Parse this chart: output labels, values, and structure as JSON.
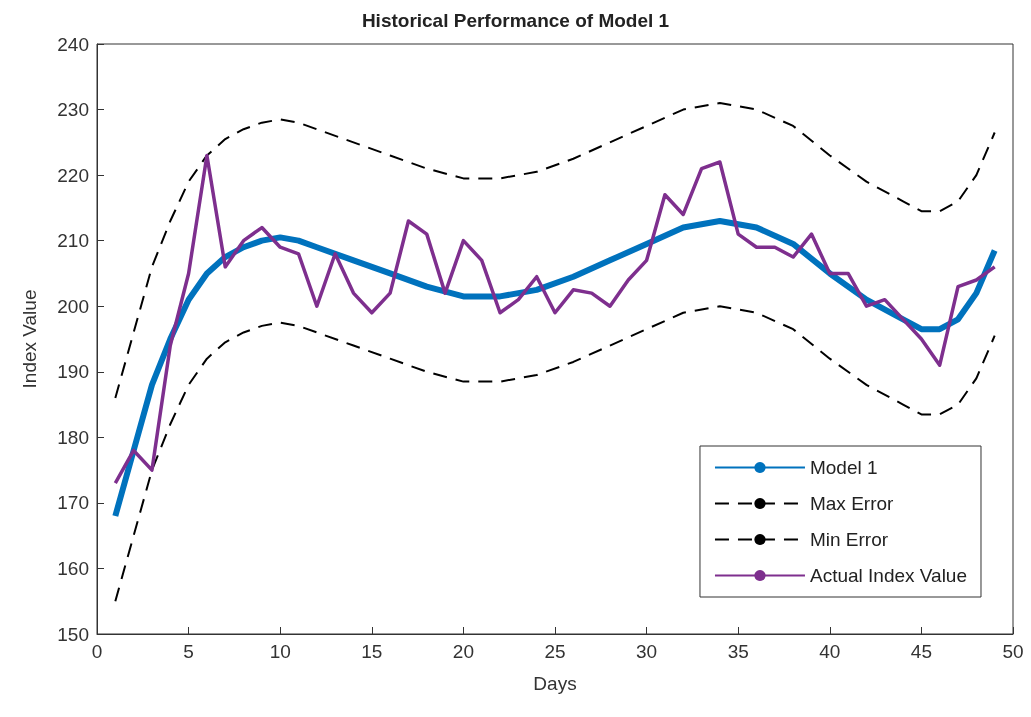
{
  "chart_data": {
    "type": "line",
    "title": "Historical Performance of Model 1",
    "xlabel": "Days",
    "ylabel": "Index Value",
    "xlim": [
      0,
      50
    ],
    "xticks": [
      0,
      5,
      10,
      15,
      20,
      25,
      30,
      35,
      40,
      45,
      50
    ],
    "ylim": [
      150,
      240
    ],
    "yticks": [
      150,
      160,
      170,
      180,
      190,
      200,
      210,
      220,
      230,
      240
    ],
    "grid": false,
    "legend": "bottom right",
    "marker": "none",
    "series": [
      {
        "name": "Model 1",
        "color": "#0072bd",
        "line_style": "solid",
        "x": [
          1,
          2,
          3,
          4,
          5,
          6,
          7,
          8,
          9,
          10,
          11,
          12,
          14,
          16,
          18,
          20,
          22,
          24,
          26,
          28,
          30,
          32,
          34,
          36,
          38,
          40,
          42,
          44,
          45,
          46,
          47,
          48,
          49
        ],
        "values": [
          168,
          178,
          188,
          195,
          201,
          205,
          207.5,
          209,
          210,
          210.5,
          210,
          209,
          207,
          205,
          203,
          201.5,
          201.5,
          202.5,
          204.5,
          207,
          209.5,
          212,
          213,
          212,
          209.5,
          205,
          201,
          198,
          196.5,
          196.5,
          198,
          202,
          208.5
        ]
      },
      {
        "name": "Max Error",
        "color": "#000000",
        "line_style": "dashed",
        "x": [
          1,
          2,
          3,
          4,
          5,
          6,
          7,
          8,
          9,
          10,
          11,
          12,
          14,
          16,
          18,
          20,
          22,
          24,
          26,
          28,
          30,
          32,
          34,
          36,
          38,
          40,
          42,
          44,
          45,
          46,
          47,
          48,
          49
        ],
        "values": [
          186,
          196,
          206,
          213,
          219,
          223,
          225.5,
          227,
          228,
          228.5,
          228,
          227,
          225,
          223,
          221,
          219.5,
          219.5,
          220.5,
          222.5,
          225,
          227.5,
          230,
          231,
          230,
          227.5,
          223,
          219,
          216,
          214.5,
          214.5,
          216,
          220,
          226.5
        ]
      },
      {
        "name": "Min Error",
        "color": "#000000",
        "line_style": "dashed",
        "x": [
          1,
          2,
          3,
          4,
          5,
          6,
          7,
          8,
          9,
          10,
          11,
          12,
          14,
          16,
          18,
          20,
          22,
          24,
          26,
          28,
          30,
          32,
          34,
          36,
          38,
          40,
          42,
          44,
          45,
          46,
          47,
          48,
          49
        ],
        "values": [
          155,
          165,
          175,
          182,
          188,
          192,
          194.5,
          196,
          197,
          197.5,
          197,
          196,
          194,
          192,
          190,
          188.5,
          188.5,
          189.5,
          191.5,
          194,
          196.5,
          199,
          200,
          199,
          196.5,
          192,
          188,
          185,
          183.5,
          183.5,
          185,
          189,
          195.5
        ]
      },
      {
        "name": "Actual Index Value",
        "color": "#7e2f8e",
        "line_style": "solid",
        "x": [
          1,
          2,
          3,
          4,
          5,
          6,
          7,
          8,
          9,
          10,
          11,
          12,
          13,
          14,
          15,
          16,
          17,
          18,
          19,
          20,
          21,
          22,
          23,
          24,
          25,
          26,
          27,
          28,
          29,
          30,
          31,
          32,
          33,
          34,
          35,
          36,
          37,
          38,
          39,
          40,
          41,
          42,
          43,
          44,
          45,
          46,
          47,
          48,
          49
        ],
        "values": [
          173,
          178,
          175,
          194,
          205,
          223,
          206,
          210,
          212,
          209,
          208,
          200,
          208,
          202,
          199,
          202,
          213,
          211,
          202,
          210,
          207,
          199,
          201,
          204.5,
          199,
          202.5,
          202,
          200,
          204,
          207,
          217,
          214,
          221,
          222,
          211,
          209,
          209,
          207.5,
          211,
          205,
          205,
          200,
          201,
          198,
          195,
          191,
          203,
          204,
          206
        ]
      }
    ]
  }
}
